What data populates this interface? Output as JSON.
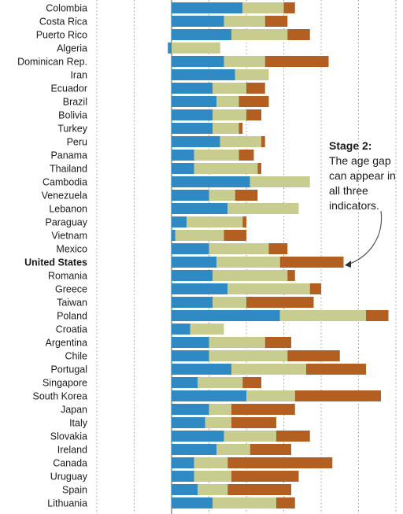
{
  "annotation": {
    "title": "Stage 2:",
    "body": "The age gap can appear in all three indicators."
  },
  "chart_data": {
    "type": "bar",
    "stacked": true,
    "orientation": "horizontal",
    "title": "",
    "xlabel": "",
    "ylabel": "",
    "grid": true,
    "legend": "none",
    "highlight": "United States",
    "categories": [
      "Colombia",
      "Costa Rica",
      "Puerto Rico",
      "Algeria",
      "Dominican Rep.",
      "Iran",
      "Ecuador",
      "Brazil",
      "Bolivia",
      "Turkey",
      "Peru",
      "Panama",
      "Thailand",
      "Cambodia",
      "Venezuela",
      "Lebanon",
      "Paraguay",
      "Vietnam",
      "Mexico",
      "United States",
      "Romania",
      "Greece",
      "Taiwan",
      "Poland",
      "Croatia",
      "Argentina",
      "Chile",
      "Portugal",
      "Singapore",
      "South Korea",
      "Japan",
      "Italy",
      "Slovakia",
      "Ireland",
      "Canada",
      "Uruguay",
      "Spain",
      "Lithuania"
    ],
    "series": [
      {
        "color": "#2f8ac4",
        "values": [
          19,
          14,
          16,
          -1,
          14,
          17,
          11,
          12,
          11,
          11,
          13,
          6,
          6,
          21,
          10,
          15,
          4,
          1,
          10,
          12,
          11,
          15,
          11,
          29,
          5,
          10,
          10,
          16,
          7,
          20,
          10,
          9,
          14,
          12,
          6,
          6,
          7,
          11
        ]
      },
      {
        "color": "#c8cc8f",
        "values": [
          11,
          11,
          15,
          13,
          11,
          9,
          9,
          6,
          9,
          7,
          11,
          12,
          17,
          16,
          7,
          19,
          15,
          13,
          16,
          17,
          20,
          22,
          9,
          23,
          9,
          15,
          21,
          20,
          12,
          13,
          6,
          7,
          14,
          9,
          9,
          10,
          8,
          17
        ]
      },
      {
        "color": "#b35f22",
        "values": [
          3,
          6,
          6,
          0,
          17,
          0,
          5,
          8,
          4,
          1,
          1,
          4,
          1,
          0,
          6,
          0,
          1,
          6,
          5,
          17,
          2,
          3,
          18,
          6,
          0,
          7,
          14,
          16,
          5,
          23,
          17,
          12,
          9,
          11,
          28,
          18,
          17,
          5
        ]
      }
    ]
  }
}
